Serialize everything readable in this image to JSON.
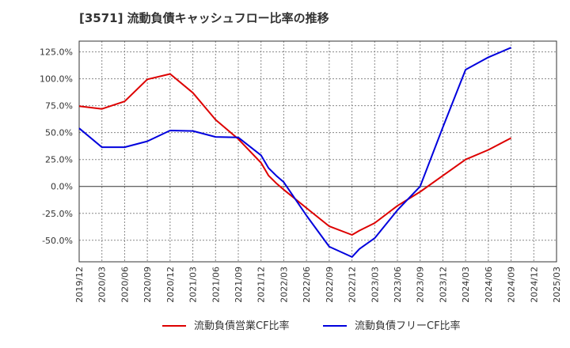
{
  "title": "[3571]  流動負債キャッシュフロー比率の推移",
  "chart_data": {
    "type": "line",
    "title": "[3571]  流動負債キャッシュフロー比率の推移",
    "xlabel": "",
    "ylabel": "",
    "ylim": [
      -70,
      135
    ],
    "grid": true,
    "legend_position": "bottom",
    "x_ticks": [
      "2019/12",
      "2020/03",
      "2020/06",
      "2020/09",
      "2020/12",
      "2021/03",
      "2021/06",
      "2021/09",
      "2021/12",
      "2022/03",
      "2022/06",
      "2022/09",
      "2022/12",
      "2023/03",
      "2023/06",
      "2023/09",
      "2023/12",
      "2024/03",
      "2024/06",
      "2024/09",
      "2024/12",
      "2025/03"
    ],
    "y_ticks": [
      125,
      100,
      75,
      50,
      25,
      0,
      -25,
      -50
    ],
    "y_tick_labels": [
      "125.0%",
      "100.0%",
      "75.0%",
      "50.0%",
      "25.0%",
      "0.0%",
      "-25.0%",
      "-50.0%"
    ],
    "series": [
      {
        "name": "流動負債営業CF比率",
        "color": "#dd0000",
        "points": [
          [
            "2019/12",
            74.5
          ],
          [
            "2020/03",
            72.0
          ],
          [
            "2020/06",
            79.0
          ],
          [
            "2020/09",
            99.5
          ],
          [
            "2020/12",
            104.5
          ],
          [
            "2021/03",
            87.0
          ],
          [
            "2021/06",
            62.0
          ],
          [
            "2021/09",
            44.0
          ],
          [
            "2021/12",
            22.0
          ],
          [
            "2022/01",
            10.0
          ],
          [
            "2022/02",
            3.0
          ],
          [
            "2022/03",
            -3.0
          ],
          [
            "2022/06",
            -20.0
          ],
          [
            "2022/09",
            -37.0
          ],
          [
            "2022/12",
            -45.0
          ],
          [
            "2023/01",
            -41.0
          ],
          [
            "2023/03",
            -34.0
          ],
          [
            "2023/06",
            -18.0
          ],
          [
            "2023/09",
            -5.0
          ],
          [
            "2023/12",
            10.0
          ],
          [
            "2024/03",
            25.0
          ],
          [
            "2024/06",
            34.0
          ],
          [
            "2024/09",
            45.0
          ]
        ]
      },
      {
        "name": "流動負債フリーCF比率",
        "color": "#0000dd",
        "points": [
          [
            "2019/12",
            54.0
          ],
          [
            "2020/03",
            36.5
          ],
          [
            "2020/06",
            36.5
          ],
          [
            "2020/09",
            42.0
          ],
          [
            "2020/12",
            52.0
          ],
          [
            "2021/03",
            51.5
          ],
          [
            "2021/06",
            46.0
          ],
          [
            "2021/09",
            45.5
          ],
          [
            "2021/12",
            29.0
          ],
          [
            "2022/01",
            17.0
          ],
          [
            "2022/02",
            10.0
          ],
          [
            "2022/03",
            4.0
          ],
          [
            "2022/06",
            -27.0
          ],
          [
            "2022/09",
            -56.0
          ],
          [
            "2022/12",
            -65.5
          ],
          [
            "2023/01",
            -58.0
          ],
          [
            "2023/03",
            -48.0
          ],
          [
            "2023/06",
            -22.0
          ],
          [
            "2023/09",
            0.0
          ],
          [
            "2023/12",
            55.0
          ],
          [
            "2024/03",
            108.5
          ],
          [
            "2024/06",
            120.0
          ],
          [
            "2024/09",
            129.0
          ]
        ]
      }
    ]
  }
}
